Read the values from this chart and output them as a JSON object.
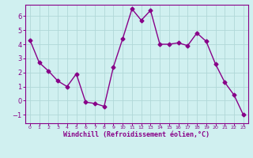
{
  "x": [
    0,
    1,
    2,
    3,
    4,
    5,
    6,
    7,
    8,
    9,
    10,
    11,
    12,
    13,
    14,
    15,
    16,
    17,
    18,
    19,
    20,
    21,
    22,
    23
  ],
  "y": [
    4.3,
    2.7,
    2.1,
    1.4,
    1.0,
    1.9,
    -0.1,
    -0.2,
    -0.4,
    2.4,
    4.4,
    6.5,
    5.7,
    6.4,
    4.0,
    4.0,
    4.1,
    3.9,
    4.8,
    4.2,
    2.6,
    1.3,
    0.4,
    -1.0
  ],
  "line_color": "#880088",
  "marker": "D",
  "marker_size": 2.5,
  "linewidth": 1.0,
  "bg_color": "#d0f0f0",
  "grid_color": "#b0d8d8",
  "xlabel": "Windchill (Refroidissement éolien,°C)",
  "xlabel_color": "#880088",
  "tick_color": "#880088",
  "xlim": [
    -0.5,
    23.5
  ],
  "ylim": [
    -1.6,
    6.8
  ],
  "yticks": [
    -1,
    0,
    1,
    2,
    3,
    4,
    5,
    6
  ],
  "xticks": [
    0,
    1,
    2,
    3,
    4,
    5,
    6,
    7,
    8,
    9,
    10,
    11,
    12,
    13,
    14,
    15,
    16,
    17,
    18,
    19,
    20,
    21,
    22,
    23
  ],
  "spine_color": "#880088",
  "title_color": "#880088"
}
